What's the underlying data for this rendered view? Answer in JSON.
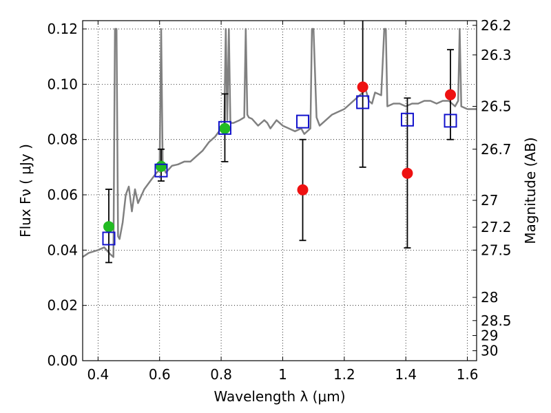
{
  "chart_data": {
    "type": "scatter",
    "xlabel": "Wavelength  λ (μm)",
    "ylabel": "Flux  Fν ( μJy )",
    "ylabel_right": "Magnitude (AB)",
    "xlim": [
      0.35,
      1.63
    ],
    "ylim": [
      0.0,
      0.123
    ],
    "grid": true,
    "x_ticks": [
      0.4,
      0.6,
      0.8,
      1.0,
      1.2,
      1.4,
      1.6
    ],
    "x_tick_labels": [
      "0.4",
      "0.6",
      "0.8",
      "1",
      "1.2",
      "1.4",
      "1.6"
    ],
    "y_ticks": [
      0.0,
      0.02,
      0.04,
      0.06,
      0.08,
      0.1,
      0.12
    ],
    "y_tick_labels": [
      "0.00",
      "0.02",
      "0.04",
      "0.06",
      "0.08",
      "0.10",
      "0.12"
    ],
    "right_axis_ticks": [
      {
        "label": "26.2",
        "flux": 0.1213
      },
      {
        "label": "26.3",
        "flux": 0.1106
      },
      {
        "label": "26.5",
        "flux": 0.092
      },
      {
        "label": "26.7",
        "flux": 0.0765
      },
      {
        "label": "27",
        "flux": 0.058
      },
      {
        "label": "27.2",
        "flux": 0.0483
      },
      {
        "label": "27.5",
        "flux": 0.04
      },
      {
        "label": "28",
        "flux": 0.0229
      },
      {
        "label": "28.5",
        "flux": 0.0145
      },
      {
        "label": "29",
        "flux": 0.0091
      },
      {
        "label": "30",
        "flux": 0.0036
      }
    ],
    "series": [
      {
        "type": "line",
        "color": "#808080",
        "x": [
          0.35,
          0.37,
          0.4,
          0.42,
          0.44,
          0.45,
          0.455,
          0.46,
          0.465,
          0.47,
          0.48,
          0.49,
          0.5,
          0.51,
          0.52,
          0.53,
          0.55,
          0.57,
          0.59,
          0.6,
          0.605,
          0.61,
          0.62,
          0.64,
          0.66,
          0.68,
          0.7,
          0.72,
          0.74,
          0.76,
          0.78,
          0.8,
          0.81,
          0.815,
          0.82,
          0.825,
          0.83,
          0.84,
          0.86,
          0.875,
          0.88,
          0.885,
          0.89,
          0.9,
          0.92,
          0.94,
          0.95,
          0.96,
          0.98,
          1.0,
          1.02,
          1.04,
          1.06,
          1.07,
          1.08,
          1.09,
          1.095,
          1.1,
          1.11,
          1.12,
          1.13,
          1.16,
          1.18,
          1.2,
          1.22,
          1.24,
          1.25,
          1.26,
          1.27,
          1.28,
          1.29,
          1.3,
          1.32,
          1.33,
          1.335,
          1.34,
          1.36,
          1.38,
          1.4,
          1.42,
          1.44,
          1.46,
          1.48,
          1.5,
          1.52,
          1.54,
          1.56,
          1.57,
          1.575,
          1.58,
          1.6,
          1.63
        ],
        "y": [
          0.0375,
          0.039,
          0.04,
          0.041,
          0.0385,
          0.0375,
          0.12,
          0.12,
          0.045,
          0.044,
          0.05,
          0.06,
          0.063,
          0.054,
          0.062,
          0.057,
          0.062,
          0.065,
          0.068,
          0.069,
          0.12,
          0.071,
          0.068,
          0.0705,
          0.071,
          0.072,
          0.072,
          0.074,
          0.076,
          0.079,
          0.081,
          0.084,
          0.085,
          0.12,
          0.087,
          0.12,
          0.086,
          0.086,
          0.087,
          0.088,
          0.12,
          0.089,
          0.088,
          0.0875,
          0.085,
          0.087,
          0.086,
          0.084,
          0.087,
          0.085,
          0.084,
          0.083,
          0.084,
          0.082,
          0.083,
          0.084,
          0.12,
          0.12,
          0.088,
          0.085,
          0.086,
          0.089,
          0.09,
          0.091,
          0.093,
          0.095,
          0.096,
          0.097,
          0.098,
          0.094,
          0.093,
          0.097,
          0.096,
          0.12,
          0.12,
          0.092,
          0.093,
          0.093,
          0.092,
          0.093,
          0.093,
          0.094,
          0.094,
          0.093,
          0.094,
          0.094,
          0.092,
          0.094,
          0.12,
          0.092,
          0.091,
          0.091
        ]
      },
      {
        "type": "scatter",
        "marker": "circle",
        "color": "#22bb22",
        "x": [
          0.435,
          0.605,
          0.812
        ],
        "y": [
          0.0485,
          0.0703,
          0.084
        ],
        "yerr_low": [
          0.0355,
          0.065,
          0.072
        ],
        "yerr_high": [
          0.062,
          0.0765,
          0.0965
        ]
      },
      {
        "type": "scatter",
        "marker": "circle",
        "color": "#ee1111",
        "x": [
          1.065,
          1.26,
          1.405,
          1.545
        ],
        "y": [
          0.0618,
          0.099,
          0.0678,
          0.0962
        ],
        "yerr_low": [
          0.0435,
          0.07,
          0.0408,
          0.08
        ],
        "yerr_high": [
          0.08,
          0.1235,
          0.095,
          0.1125
        ]
      },
      {
        "type": "scatter",
        "marker": "open-square",
        "color": "#1111cc",
        "x": [
          0.435,
          0.605,
          0.812,
          1.065,
          1.26,
          1.405,
          1.545
        ],
        "y": [
          0.0442,
          0.0688,
          0.0842,
          0.0865,
          0.0935,
          0.0872,
          0.0868
        ]
      }
    ]
  }
}
